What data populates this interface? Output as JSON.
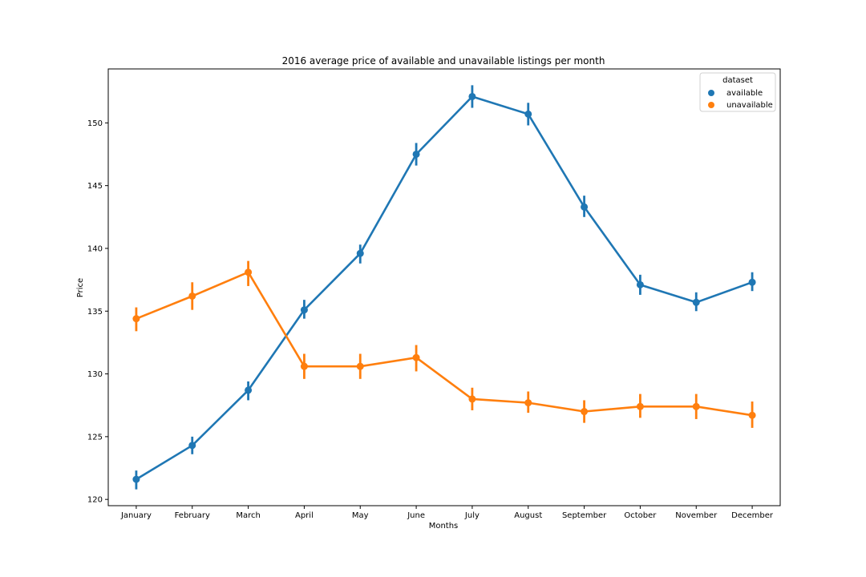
{
  "chart_data": {
    "type": "line",
    "title": "2016 average price of available and unavailable listings per month",
    "xlabel": "Months",
    "ylabel": "Price",
    "ylim": [
      119.5,
      154.3
    ],
    "yticks": [
      120,
      125,
      130,
      135,
      140,
      145,
      150
    ],
    "grid": false,
    "legend": {
      "title": "dataset",
      "placement": "top-right"
    },
    "categories": [
      "January",
      "February",
      "March",
      "April",
      "May",
      "June",
      "July",
      "August",
      "September",
      "October",
      "November",
      "December"
    ],
    "series": [
      {
        "name": "available",
        "color": "#1f77b4",
        "values": [
          121.6,
          124.3,
          128.7,
          135.1,
          139.6,
          147.5,
          152.1,
          150.7,
          143.3,
          137.1,
          135.7,
          137.3
        ],
        "err_low": [
          120.8,
          123.6,
          127.9,
          134.4,
          138.8,
          146.6,
          151.2,
          149.8,
          142.5,
          136.3,
          135.0,
          136.6
        ],
        "err_high": [
          122.3,
          125.0,
          129.4,
          135.9,
          140.3,
          148.4,
          153.0,
          151.6,
          144.2,
          137.9,
          136.5,
          138.1
        ]
      },
      {
        "name": "unavailable",
        "color": "#ff7f0e",
        "values": [
          134.4,
          136.2,
          138.1,
          130.6,
          130.6,
          131.3,
          128.0,
          127.7,
          127.0,
          127.4,
          127.4,
          126.7
        ],
        "err_low": [
          133.4,
          135.1,
          137.0,
          129.6,
          129.6,
          130.2,
          127.1,
          126.9,
          126.1,
          126.5,
          126.4,
          125.7
        ],
        "err_high": [
          135.3,
          137.3,
          139.0,
          131.6,
          131.6,
          132.3,
          128.9,
          128.6,
          127.9,
          128.4,
          128.4,
          127.8
        ]
      }
    ]
  }
}
